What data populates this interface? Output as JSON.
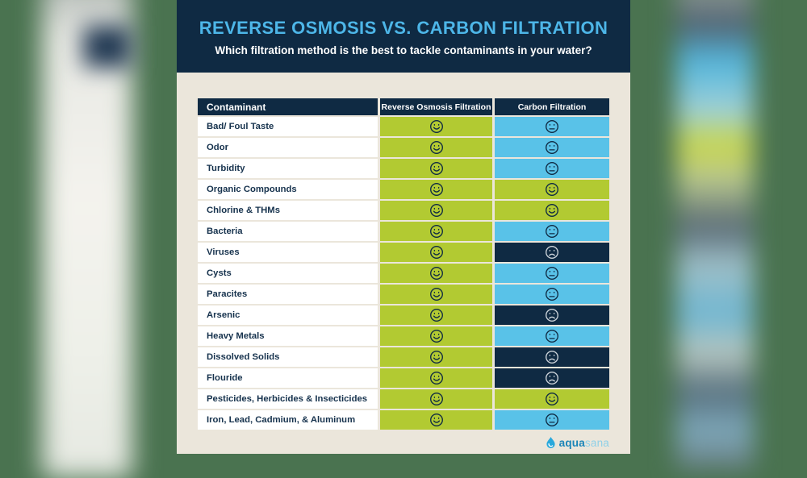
{
  "header": {
    "title": "REVERSE OSMOSIS VS. CARBON FILTRATION",
    "subtitle": "Which filtration method is the best to tackle contaminants in your water?"
  },
  "chart_data": {
    "type": "table",
    "title": "REVERSE OSMOSIS VS. CARBON FILTRATION",
    "subtitle": "Which filtration method is the best to tackle contaminants in your water?",
    "columns": [
      "Contaminant",
      "Reverse Osmosis Filtration",
      "Carbon Filtration"
    ],
    "value_key": {
      "happy": "smiley-face-icon",
      "neutral": "neutral-face-icon",
      "sad": "sad-face-icon"
    },
    "rows": [
      {
        "label": "Bad/ Foul Taste",
        "reverse_osmosis": "happy",
        "carbon": "neutral"
      },
      {
        "label": "Odor",
        "reverse_osmosis": "happy",
        "carbon": "neutral"
      },
      {
        "label": "Turbidity",
        "reverse_osmosis": "happy",
        "carbon": "neutral"
      },
      {
        "label": "Organic Compounds",
        "reverse_osmosis": "happy",
        "carbon": "happy"
      },
      {
        "label": "Chlorine & THMs",
        "reverse_osmosis": "happy",
        "carbon": "happy"
      },
      {
        "label": "Bacteria",
        "reverse_osmosis": "happy",
        "carbon": "neutral"
      },
      {
        "label": "Viruses",
        "reverse_osmosis": "happy",
        "carbon": "sad"
      },
      {
        "label": "Cysts",
        "reverse_osmosis": "happy",
        "carbon": "neutral"
      },
      {
        "label": "Paracites",
        "reverse_osmosis": "happy",
        "carbon": "neutral"
      },
      {
        "label": "Arsenic",
        "reverse_osmosis": "happy",
        "carbon": "sad"
      },
      {
        "label": "Heavy Metals",
        "reverse_osmosis": "happy",
        "carbon": "neutral"
      },
      {
        "label": "Dissolved Solids",
        "reverse_osmosis": "happy",
        "carbon": "sad"
      },
      {
        "label": "Flouride",
        "reverse_osmosis": "happy",
        "carbon": "sad"
      },
      {
        "label": "Pesticides, Herbicides & Insecticides",
        "reverse_osmosis": "happy",
        "carbon": "happy"
      },
      {
        "label": "Iron, Lead, Cadmium, & Aluminum",
        "reverse_osmosis": "happy",
        "carbon": "neutral"
      }
    ]
  },
  "logo": {
    "icon": "water-drop-icon",
    "brand_primary": "aqua",
    "brand_secondary": "sana"
  },
  "colors": {
    "navy": "#0f2a43",
    "cell_green": "#b2ca32",
    "cell_blue": "#59c2e8",
    "cream": "#ebe6db",
    "backdrop_green": "#4a7350",
    "title_blue": "#4db6e8",
    "label_navy": "#16324d",
    "sad_stroke": "#ccd3da"
  }
}
